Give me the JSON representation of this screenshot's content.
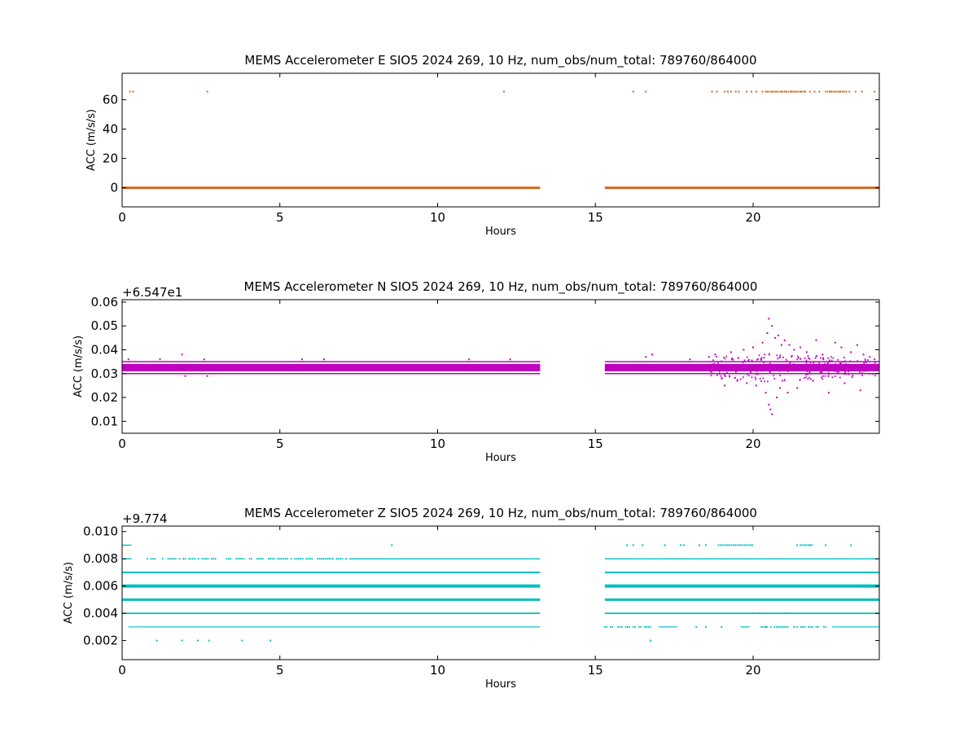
{
  "chart_data": [
    {
      "type": "scatter",
      "title": "MEMS Accelerometer E SIO5 2024 269, 10 Hz, num_obs/num_total: 789760/864000",
      "xlabel": "Hours",
      "ylabel": "ACC (m/s/s)",
      "offset_text": "",
      "xlim": [
        0,
        24
      ],
      "ylim": [
        -13,
        78
      ],
      "xticks": [
        "0",
        "5",
        "10",
        "15",
        "20"
      ],
      "xtick_values": [
        0,
        5,
        10,
        15,
        20
      ],
      "yticks": [
        "0",
        "20",
        "40",
        "60"
      ],
      "ytick_values": [
        0,
        20,
        40,
        60
      ],
      "color": "#d2691e",
      "grid": false,
      "series": [
        {
          "bands": [
            {
              "y": 0,
              "segments": [
                [
                  0.0,
                  13.25
                ],
                [
                  15.3,
                  24.0
                ]
              ],
              "thickness": 3
            }
          ],
          "points": [
            [
              0.25,
              65.5
            ],
            [
              0.35,
              65.5
            ],
            [
              2.7,
              65.5
            ],
            [
              12.1,
              65.5
            ],
            [
              16.2,
              65.5
            ],
            [
              16.6,
              65.5
            ],
            [
              18.7,
              65.5
            ],
            [
              18.85,
              65.5
            ],
            [
              19.1,
              65.5
            ],
            [
              19.2,
              65.5
            ],
            [
              19.3,
              65.5
            ],
            [
              19.45,
              65.5
            ],
            [
              19.55,
              65.5
            ],
            [
              19.8,
              65.5
            ],
            [
              19.95,
              65.5
            ],
            [
              20.1,
              65.5
            ],
            [
              20.3,
              65.5
            ],
            [
              20.45,
              65.5
            ],
            [
              20.6,
              65.5
            ],
            [
              20.75,
              65.5
            ],
            [
              20.9,
              65.5
            ],
            [
              21.05,
              65.5
            ],
            [
              21.2,
              65.5
            ],
            [
              21.35,
              65.5
            ],
            [
              21.5,
              65.5
            ],
            [
              21.65,
              65.5
            ],
            [
              21.8,
              65.5
            ],
            [
              21.95,
              65.5
            ],
            [
              22.1,
              65.5
            ],
            [
              22.45,
              65.5
            ],
            [
              22.6,
              65.5
            ],
            [
              22.75,
              65.5
            ],
            [
              22.9,
              65.5
            ],
            [
              23.05,
              65.5
            ],
            [
              23.25,
              65.5
            ],
            [
              23.45,
              65.5
            ],
            [
              23.85,
              65.5
            ]
          ],
          "point_runs": [
            {
              "y": 65.5,
              "from": 20.4,
              "to": 21.6
            },
            {
              "y": 65.5,
              "from": 22.3,
              "to": 23.0
            }
          ]
        }
      ]
    },
    {
      "type": "scatter",
      "title": "MEMS Accelerometer N SIO5 2024 269, 10 Hz, num_obs/num_total: 789760/864000",
      "xlabel": "Hours",
      "ylabel": "ACC (m/s/s)",
      "offset_text": "+6.547e1",
      "xlim": [
        0,
        24
      ],
      "ylim": [
        0.005,
        0.061
      ],
      "xticks": [
        "0",
        "5",
        "10",
        "15",
        "20"
      ],
      "xtick_values": [
        0,
        5,
        10,
        15,
        20
      ],
      "yticks": [
        "0.01",
        "0.02",
        "0.03",
        "0.04",
        "0.05",
        "0.06"
      ],
      "ytick_values": [
        0.01,
        0.02,
        0.03,
        0.04,
        0.05,
        0.06
      ],
      "color": "#bf00bf",
      "grid": false,
      "series": [
        {
          "bands": [
            {
              "y": 0.0325,
              "segments": [
                [
                  0.0,
                  13.25
                ],
                [
                  15.3,
                  24.0
                ]
              ],
              "thickness": 9
            },
            {
              "y": 0.035,
              "segments": [
                [
                  0.0,
                  13.25
                ],
                [
                  15.3,
                  24.0
                ]
              ],
              "thickness": 1.5
            },
            {
              "y": 0.03,
              "segments": [
                [
                  0.0,
                  13.25
                ],
                [
                  15.3,
                  24.0
                ]
              ],
              "thickness": 1.5
            }
          ],
          "points": [
            [
              0.2,
              0.036
            ],
            [
              1.2,
              0.036
            ],
            [
              1.9,
              0.038
            ],
            [
              2.0,
              0.029
            ],
            [
              2.6,
              0.036
            ],
            [
              2.7,
              0.029
            ],
            [
              5.7,
              0.036
            ],
            [
              6.4,
              0.036
            ],
            [
              11.0,
              0.036
            ],
            [
              12.3,
              0.036
            ],
            [
              16.6,
              0.037
            ],
            [
              16.8,
              0.038
            ],
            [
              18.0,
              0.036
            ],
            [
              18.6,
              0.037
            ],
            [
              18.8,
              0.038
            ],
            [
              19.0,
              0.028
            ],
            [
              19.1,
              0.025
            ],
            [
              19.3,
              0.039
            ],
            [
              19.5,
              0.027
            ],
            [
              19.7,
              0.04
            ],
            [
              19.8,
              0.026
            ],
            [
              20.0,
              0.041
            ],
            [
              20.1,
              0.025
            ],
            [
              20.3,
              0.043
            ],
            [
              20.4,
              0.022
            ],
            [
              20.45,
              0.047
            ],
            [
              20.5,
              0.017
            ],
            [
              20.5,
              0.053
            ],
            [
              20.55,
              0.015
            ],
            [
              20.6,
              0.05
            ],
            [
              20.6,
              0.013
            ],
            [
              20.7,
              0.045
            ],
            [
              20.75,
              0.02
            ],
            [
              20.8,
              0.046
            ],
            [
              20.85,
              0.024
            ],
            [
              20.9,
              0.042
            ],
            [
              21.0,
              0.044
            ],
            [
              21.1,
              0.022
            ],
            [
              21.15,
              0.042
            ],
            [
              21.3,
              0.04
            ],
            [
              21.4,
              0.024
            ],
            [
              21.5,
              0.041
            ],
            [
              21.7,
              0.039
            ],
            [
              21.9,
              0.027
            ],
            [
              22.0,
              0.044
            ],
            [
              22.2,
              0.038
            ],
            [
              22.4,
              0.022
            ],
            [
              22.6,
              0.043
            ],
            [
              22.8,
              0.041
            ],
            [
              22.9,
              0.026
            ],
            [
              23.1,
              0.039
            ],
            [
              23.3,
              0.042
            ],
            [
              23.4,
              0.023
            ],
            [
              23.5,
              0.038
            ],
            [
              23.7,
              0.037
            ],
            [
              23.85,
              0.036
            ]
          ],
          "scatter_regions": [
            {
              "from": 18.6,
              "to": 24.0,
              "y_center": 0.0325,
              "y_spread": 0.006,
              "count": 260
            }
          ]
        }
      ]
    },
    {
      "type": "scatter",
      "title": "MEMS Accelerometer Z SIO5 2024 269, 10 Hz, num_obs/num_total: 789760/864000",
      "xlabel": "Hours",
      "ylabel": "ACC (m/s/s)",
      "offset_text": "+9.774",
      "xlim": [
        0,
        24
      ],
      "ylim": [
        0.0006,
        0.0104
      ],
      "xticks": [
        "0",
        "5",
        "10",
        "15",
        "20"
      ],
      "xtick_values": [
        0,
        5,
        10,
        15,
        20
      ],
      "yticks": [
        "0.002",
        "0.004",
        "0.006",
        "0.008",
        "0.010"
      ],
      "ytick_values": [
        0.002,
        0.004,
        0.006,
        0.008,
        0.01
      ],
      "color": "#00bfbf",
      "grid": false,
      "series": [
        {
          "bands": [
            {
              "y": 0.006,
              "segments": [
                [
                  0.0,
                  13.25
                ],
                [
                  15.3,
                  24.0
                ]
              ],
              "thickness": 4
            },
            {
              "y": 0.005,
              "segments": [
                [
                  0.0,
                  13.25
                ],
                [
                  15.3,
                  24.0
                ]
              ],
              "thickness": 3
            },
            {
              "y": 0.007,
              "segments": [
                [
                  0.0,
                  13.25
                ],
                [
                  15.3,
                  24.0
                ]
              ],
              "thickness": 2
            },
            {
              "y": 0.004,
              "segments": [
                [
                  0.0,
                  13.25
                ],
                [
                  15.3,
                  24.0
                ]
              ],
              "thickness": 1.8
            },
            {
              "y": 0.008,
              "segments": [
                [
                  0.0,
                  0.3
                ],
                [
                  7.2,
                  13.25
                ],
                [
                  15.3,
                  24.0
                ]
              ],
              "thickness": 1.4
            },
            {
              "y": 0.003,
              "segments": [
                [
                  0.2,
                  13.25
                ],
                [
                  17.0,
                  17.6
                ],
                [
                  19.6,
                  19.9
                ],
                [
                  22.5,
                  24.0
                ]
              ],
              "thickness": 1.2
            },
            {
              "y": 0.009,
              "segments": [
                [
                  0.0,
                  0.3
                ]
              ],
              "thickness": 1.4
            }
          ],
          "points": [
            [
              1.1,
              0.002
            ],
            [
              1.9,
              0.002
            ],
            [
              2.4,
              0.002
            ],
            [
              2.75,
              0.002
            ],
            [
              3.8,
              0.002
            ],
            [
              4.7,
              0.002
            ],
            [
              8.55,
              0.009
            ],
            [
              16.0,
              0.009
            ],
            [
              16.2,
              0.009
            ],
            [
              16.5,
              0.009
            ],
            [
              17.2,
              0.009
            ],
            [
              17.7,
              0.009
            ],
            [
              17.8,
              0.009
            ],
            [
              18.3,
              0.009
            ],
            [
              18.5,
              0.009
            ],
            [
              21.4,
              0.009
            ],
            [
              21.8,
              0.009
            ],
            [
              22.3,
              0.009
            ],
            [
              23.1,
              0.009
            ],
            [
              16.75,
              0.002
            ],
            [
              18.2,
              0.003
            ],
            [
              18.5,
              0.003
            ],
            [
              19.0,
              0.003
            ],
            [
              20.4,
              0.003
            ],
            [
              21.3,
              0.003
            ],
            [
              21.0,
              0.004
            ],
            [
              20.2,
              0.004
            ]
          ],
          "point_runs": [
            {
              "y": 0.008,
              "from": 0.8,
              "to": 7.1,
              "gaps": true
            },
            {
              "y": 0.009,
              "from": 18.9,
              "to": 20.0
            },
            {
              "y": 0.009,
              "from": 21.5,
              "to": 21.9
            },
            {
              "y": 0.003,
              "from": 15.3,
              "to": 16.8,
              "gaps": true
            },
            {
              "y": 0.003,
              "from": 20.2,
              "to": 22.3,
              "gaps": true
            }
          ]
        }
      ]
    }
  ]
}
